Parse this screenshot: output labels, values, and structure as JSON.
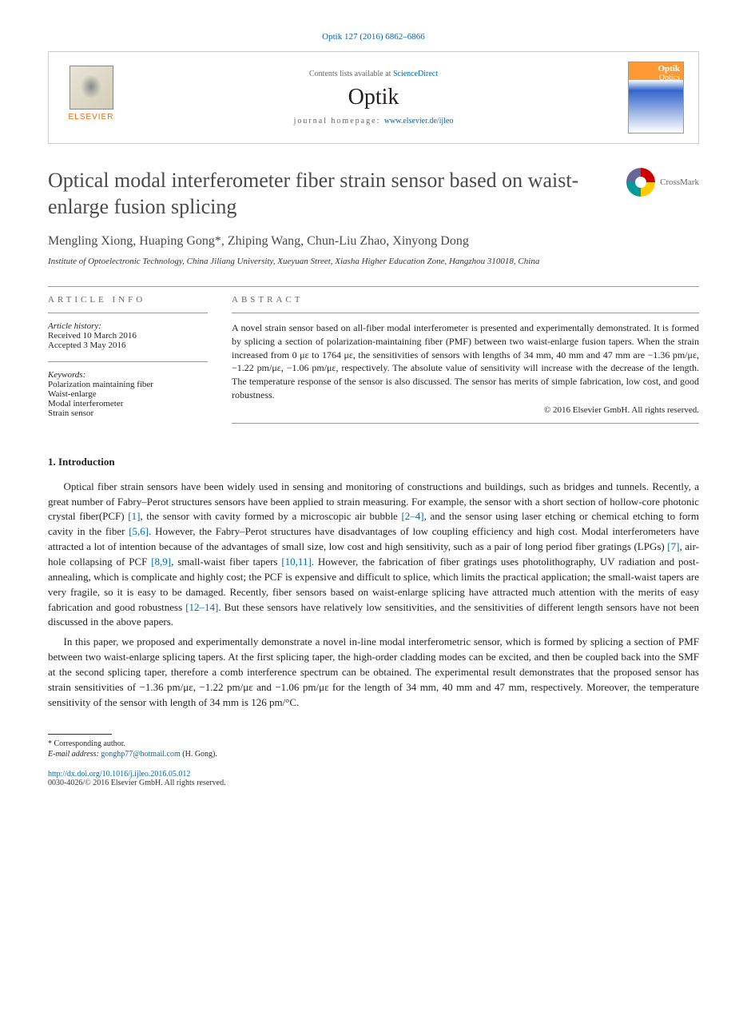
{
  "header": {
    "citation": "Optik 127 (2016) 6862–6866",
    "contents_prefix": "Contents lists available at ",
    "contents_link": "ScienceDirect",
    "journal": "Optik",
    "homepage_prefix": "journal homepage: ",
    "homepage_link": "www.elsevier.de/ijleo",
    "publisher": "ELSEVIER"
  },
  "article": {
    "title": "Optical modal interferometer fiber strain sensor based on waist-enlarge fusion splicing",
    "crossmark": "CrossMark",
    "authors": "Mengling Xiong, Huaping Gong*, Zhiping Wang, Chun-Liu Zhao, Xinyong Dong",
    "affiliation": "Institute of Optoelectronic Technology, China Jiliang University, Xueyuan Street, Xiasha Higher Education Zone, Hangzhou 310018, China"
  },
  "info": {
    "header": "ARTICLE INFO",
    "history_label": "Article history:",
    "received": "Received 10 March 2016",
    "accepted": "Accepted 3 May 2016",
    "keywords_label": "Keywords:",
    "kw1": "Polarization maintaining fiber",
    "kw2": "Waist-enlarge",
    "kw3": "Modal interferometer",
    "kw4": "Strain sensor"
  },
  "abstract": {
    "header": "ABSTRACT",
    "text": "A novel strain sensor based on all-fiber modal interferometer is presented and experimentally demonstrated. It is formed by splicing a section of polarization-maintaining fiber (PMF) between two waist-enlarge fusion tapers. When the strain increased from 0 με to 1764 με, the sensitivities of sensors with lengths of 34 mm, 40 mm and 47 mm are −1.36 pm/με, −1.22 pm/με, −1.06 pm/με, respectively. The absolute value of sensitivity will increase with the decrease of the length. The temperature response of the sensor is also discussed. The sensor has merits of simple fabrication, low cost, and good robustness.",
    "copyright": "© 2016 Elsevier GmbH. All rights reserved."
  },
  "intro": {
    "heading": "1. Introduction",
    "p1_a": "Optical fiber strain sensors have been widely used in sensing and monitoring of constructions and buildings, such as bridges and tunnels. Recently, a great number of Fabry–Perot structures sensors have been applied to strain measuring. For example, the sensor with a short section of hollow-core photonic crystal fiber(PCF) ",
    "r1": "[1]",
    "p1_b": ", the sensor with cavity formed by a microscopic air bubble ",
    "r2": "[2–4]",
    "p1_c": ", and the sensor using laser etching or chemical etching to form cavity in the fiber ",
    "r3": "[5,6]",
    "p1_d": ". However, the Fabry–Perot structures have disadvantages of low coupling efficiency and high cost. Modal interferometers have attracted a lot of intention because of the advantages of small size, low cost and high sensitivity, such as a pair of long period fiber gratings (LPGs) ",
    "r4": "[7]",
    "p1_e": ", air-hole collapsing of PCF ",
    "r5": "[8,9]",
    "p1_f": ", small-waist fiber tapers ",
    "r6": "[10,11]",
    "p1_g": ". However, the fabrication of fiber gratings uses photolithography, UV radiation and post-annealing, which is complicate and highly cost; the PCF is expensive and difficult to splice, which limits the practical application; the small-waist tapers are very fragile, so it is easy to be damaged. Recently, fiber sensors based on waist-enlarge splicing have attracted much attention with the merits of easy fabrication and good robustness ",
    "r7": "[12–14]",
    "p1_h": ". But these sensors have relatively low sensitivities, and the sensitivities of different length sensors have not been discussed in the above papers.",
    "p2": "In this paper, we proposed and experimentally demonstrate a novel in-line modal interferometric sensor, which is formed by splicing a section of PMF between two waist-enlarge splicing tapers. At the first splicing taper, the high-order cladding modes can be excited, and then be coupled back into the SMF at the second splicing taper, therefore a comb interference spectrum can be obtained. The experimental result demonstrates that the proposed sensor has strain sensitivities of −1.36 pm/με, −1.22 pm/με and −1.06 pm/με for the length of 34 mm, 40 mm and 47 mm, respectively. Moreover, the temperature sensitivity of the sensor with length of 34 mm is 126 pm/°C."
  },
  "footer": {
    "corresponding": "* Corresponding author.",
    "email_label": "E-mail address: ",
    "email": "gonghp77@hotmail.com",
    "email_suffix": " (H. Gong).",
    "doi": "http://dx.doi.org/10.1016/j.ijleo.2016.05.012",
    "issn": "0030-4026/© 2016 Elsevier GmbH. All rights reserved."
  },
  "colors": {
    "link": "#0066b3",
    "text": "#231f20",
    "orange": "#ff6600"
  }
}
